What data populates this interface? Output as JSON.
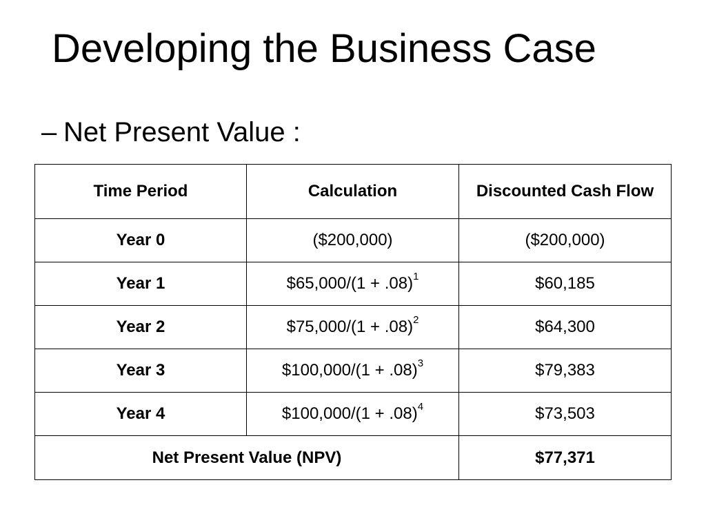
{
  "slide": {
    "title": "Developing the Business Case",
    "bullet_dash": "–",
    "bullet_text": "Net Present Value :"
  },
  "table": {
    "headers": [
      "Time Period",
      "Calculation",
      "Discounted Cash Flow"
    ],
    "rows": [
      {
        "period": "Year 0",
        "calculation": "($200,000)",
        "exponent": "",
        "discounted": "($200,000)"
      },
      {
        "period": "Year 1",
        "calculation": "$65,000/(1 + .08)",
        "exponent": "1",
        "discounted": "$60,185"
      },
      {
        "period": "Year 2",
        "calculation": "$75,000/(1 + .08)",
        "exponent": "2",
        "discounted": "$64,300"
      },
      {
        "period": "Year 3",
        "calculation": "$100,000/(1 + .08)",
        "exponent": "3",
        "discounted": "$79,383"
      },
      {
        "period": "Year 4",
        "calculation": "$100,000/(1 + .08)",
        "exponent": "4",
        "discounted": "$73,503"
      }
    ],
    "total": {
      "label": "Net Present Value (NPV)",
      "value": "$77,371"
    }
  }
}
